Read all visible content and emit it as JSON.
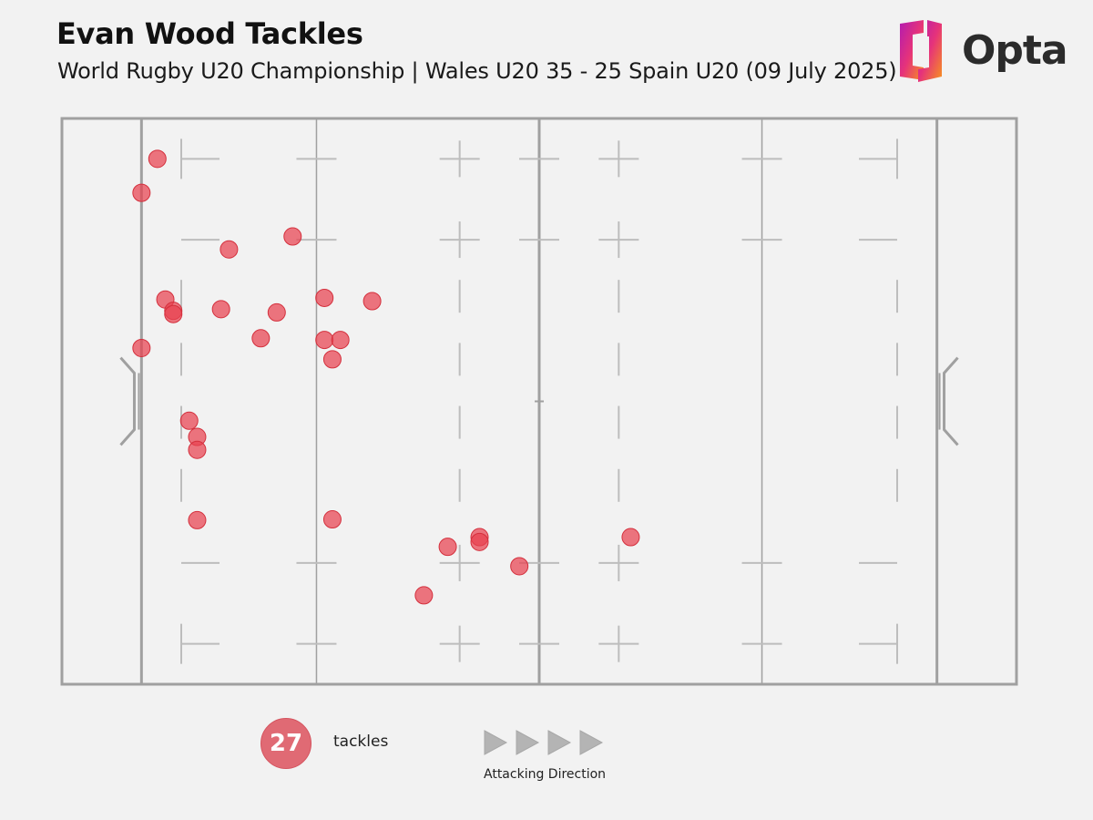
{
  "header": {
    "title": "Evan Wood Tackles",
    "subtitle": "World Rugby U20 Championship | Wales U20 35 - 25 Spain U20 (09 July 2025)"
  },
  "brand": {
    "name": "Opta",
    "logo_icon": "opta-logo-icon"
  },
  "colors": {
    "background": "#f2f2f2",
    "pitch_line": "#a0a0a0",
    "pitch_marker": "#bdbdbd",
    "tackle": "#e8414f",
    "legend_circle": "#e06a74",
    "arrow": "#b4b4b4"
  },
  "chart_data": {
    "type": "scatter",
    "title": "Evan Wood Tackles",
    "subtitle": "World Rugby U20 Championship | Wales U20 35 - 25 Spain U20 (09 July 2025)",
    "xlabel": "",
    "ylabel": "",
    "xlim": [
      -10,
      110
    ],
    "ylim": [
      0,
      70
    ],
    "grid": false,
    "legend": "bottom-left",
    "series": [
      {
        "values": [
          {
            "x": 2.0,
            "y": 65.0
          },
          {
            "x": 0.0,
            "y": 60.8
          },
          {
            "x": 19.0,
            "y": 55.4
          },
          {
            "x": 11.0,
            "y": 53.8
          },
          {
            "x": 3.0,
            "y": 47.6
          },
          {
            "x": 4.0,
            "y": 46.2
          },
          {
            "x": 4.0,
            "y": 45.8
          },
          {
            "x": 10.0,
            "y": 46.4
          },
          {
            "x": 17.0,
            "y": 46.0
          },
          {
            "x": 23.0,
            "y": 47.8
          },
          {
            "x": 29.0,
            "y": 47.4
          },
          {
            "x": 15.0,
            "y": 42.8
          },
          {
            "x": 23.0,
            "y": 42.6
          },
          {
            "x": 25.0,
            "y": 42.6
          },
          {
            "x": 24.0,
            "y": 40.2
          },
          {
            "x": 0.0,
            "y": 41.6
          },
          {
            "x": 6.0,
            "y": 32.6
          },
          {
            "x": 7.0,
            "y": 30.6
          },
          {
            "x": 7.0,
            "y": 29.0
          },
          {
            "x": 7.0,
            "y": 20.3
          },
          {
            "x": 24.0,
            "y": 20.4
          },
          {
            "x": 38.5,
            "y": 17.0
          },
          {
            "x": 42.5,
            "y": 18.2
          },
          {
            "x": 42.5,
            "y": 17.6
          },
          {
            "x": 47.5,
            "y": 14.6
          },
          {
            "x": 35.5,
            "y": 11.0
          },
          {
            "x": 61.5,
            "y": 18.2
          }
        ]
      }
    ]
  },
  "legend": {
    "count": "27",
    "label": "tackles",
    "direction_label": "Attacking Direction",
    "arrow_icon": "play-triangle-icon"
  }
}
